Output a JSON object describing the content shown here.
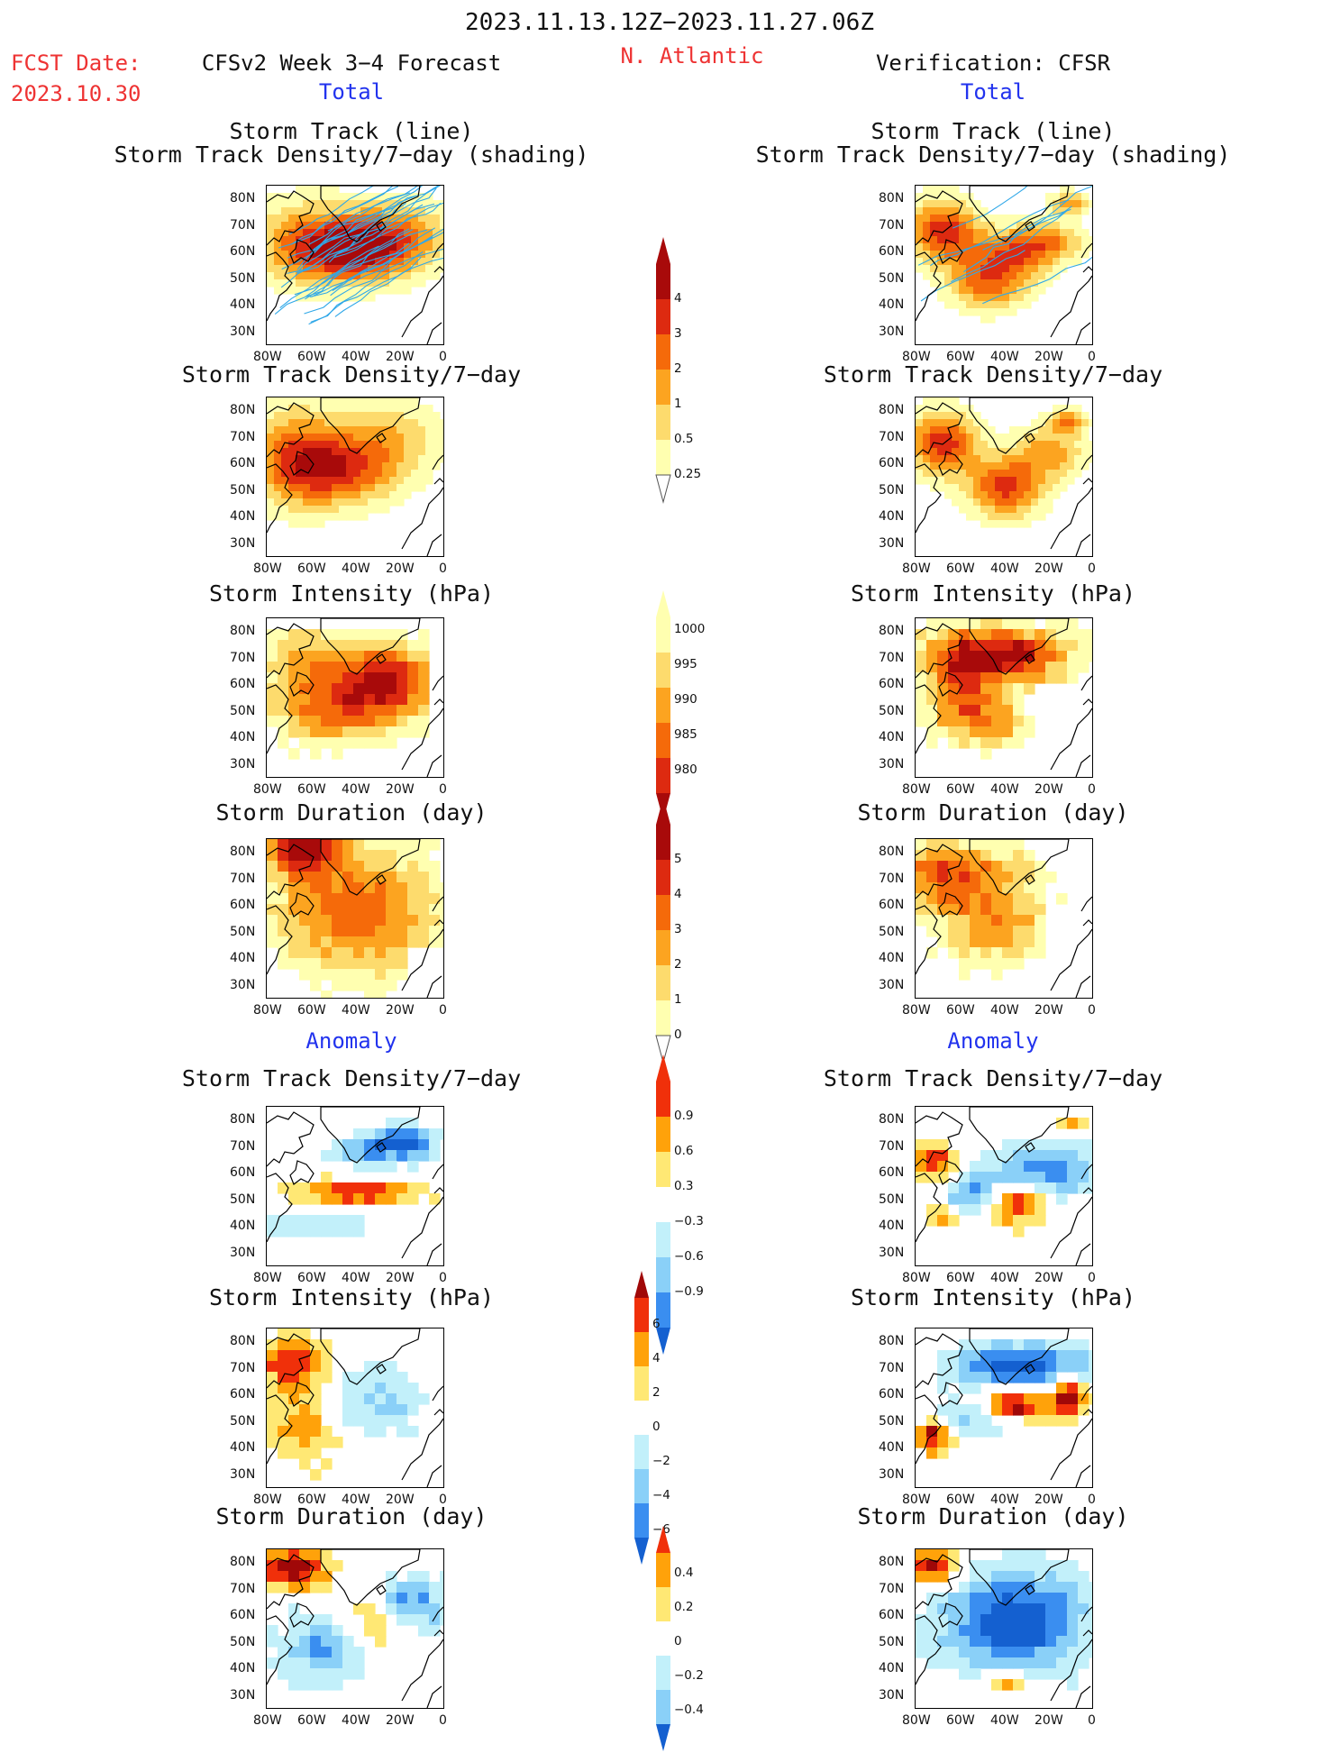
{
  "header": {
    "period": "2023.11.13.12Z−2023.11.27.06Z",
    "fcst_label": "FCST Date:",
    "fcst_date": "2023.10.30",
    "model_title": "CFSv2 Week 3−4 Forecast",
    "region": "N. Atlantic",
    "verification_title": "Verification: CFSR",
    "total_left": "Total",
    "total_right": "Total",
    "anomaly_left": "Anomaly",
    "anomaly_right": "Anomaly"
  },
  "titles": {
    "track_line": "Storm Track (line)",
    "track_shading": "Storm Track Density/7−day (shading)",
    "density": "Storm Track Density/7−day",
    "intensity": "Storm Intensity (hPa)",
    "duration": "Storm Duration (day)"
  },
  "axes": {
    "lat_labels": [
      "80N",
      "70N",
      "60N",
      "50N",
      "40N",
      "30N"
    ],
    "lon_labels": [
      "80W",
      "60W",
      "40W",
      "20W",
      "0"
    ]
  },
  "colorbars": {
    "density_total": [
      "4",
      "3",
      "2",
      "1",
      "0.5",
      "0.25"
    ],
    "intensity_total": [
      "1000",
      "995",
      "990",
      "985",
      "980"
    ],
    "duration_total": [
      "5",
      "4",
      "3",
      "2",
      "1",
      "0"
    ],
    "density_anom": [
      "0.9",
      "0.6",
      "0.3",
      "−0.3",
      "−0.6",
      "−0.9"
    ],
    "intensity_anom": [
      "6",
      "4",
      "2",
      "0",
      "−2",
      "−4",
      "−6"
    ],
    "duration_anom": [
      "0.4",
      "0.2",
      "0",
      "−0.2",
      "−0.4"
    ]
  },
  "colors": {
    "total_scale": [
      "#ffffb0",
      "#fddb6d",
      "#fca420",
      "#f56a0a",
      "#dd2a10",
      "#a80a0a"
    ],
    "anom_warm": [
      "#ffe874",
      "#ffa20a",
      "#f0300a",
      "#a00808"
    ],
    "anom_cool": [
      "#c2f0fa",
      "#8ad0f8",
      "#3a8ef0",
      "#1460d0"
    ],
    "track_lines": "#30a8e8"
  }
}
